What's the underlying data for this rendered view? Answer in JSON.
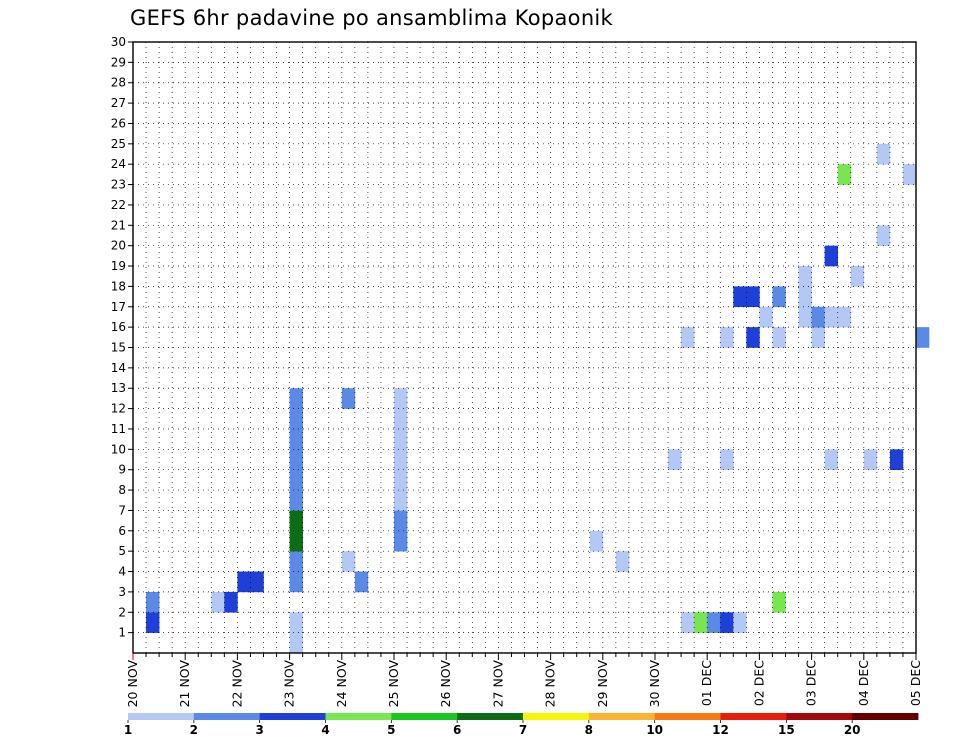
{
  "chart_data": {
    "type": "heatmap",
    "title": "GEFS 6hr padavine po ansamblima Kopaonik",
    "xlabel": "",
    "ylabel": "",
    "x_tick_labels": [
      "20 NOV",
      "21 NOV",
      "22 NOV",
      "23 NOV",
      "24 NOV",
      "25 NOV",
      "26 NOV",
      "27 NOV",
      "28 NOV",
      "29 NOV",
      "30 NOV",
      "01 DEC",
      "02 DEC",
      "03 DEC",
      "04 DEC",
      "05 DEC"
    ],
    "x_unit": "6-hour step from 20 NOV 00Z",
    "x_range": [
      0,
      60
    ],
    "y_range": [
      0,
      30
    ],
    "y_tick_labels": [
      "1",
      "2",
      "3",
      "4",
      "5",
      "6",
      "7",
      "8",
      "9",
      "10",
      "11",
      "12",
      "13",
      "14",
      "15",
      "16",
      "17",
      "18",
      "19",
      "20",
      "21",
      "22",
      "23",
      "24",
      "25",
      "26",
      "27",
      "28",
      "29",
      "30"
    ],
    "grid": true,
    "legend": {
      "placement": "bottom",
      "labels": [
        "1",
        "2",
        "3",
        "4",
        "5",
        "6",
        "7",
        "8",
        "10",
        "12",
        "15",
        "20"
      ],
      "colors": [
        "#b3c8f5",
        "#5a8ae6",
        "#1e3fd8",
        "#78e650",
        "#19c81e",
        "#0b6e14",
        "#f5f50a",
        "#fab432",
        "#fa7814",
        "#e61e0a",
        "#a00a0a",
        "#640000"
      ]
    },
    "cells": [
      [
        1,
        1,
        3
      ],
      [
        1,
        2,
        2
      ],
      [
        6,
        2,
        1
      ],
      [
        7,
        2,
        3
      ],
      [
        8,
        3,
        3
      ],
      [
        9,
        3,
        3
      ],
      [
        12,
        0,
        1
      ],
      [
        12,
        1,
        1
      ],
      [
        12,
        3,
        2
      ],
      [
        12,
        4,
        2
      ],
      [
        12,
        5,
        6
      ],
      [
        12,
        6,
        6
      ],
      [
        12,
        7,
        2
      ],
      [
        12,
        8,
        2
      ],
      [
        12,
        9,
        2
      ],
      [
        12,
        10,
        2
      ],
      [
        12,
        11,
        2
      ],
      [
        12,
        12,
        2
      ],
      [
        16,
        4,
        1
      ],
      [
        16,
        12,
        2
      ],
      [
        17,
        3,
        2
      ],
      [
        20,
        5,
        2
      ],
      [
        20,
        6,
        2
      ],
      [
        20,
        7,
        1
      ],
      [
        20,
        8,
        1
      ],
      [
        20,
        9,
        1
      ],
      [
        20,
        10,
        1
      ],
      [
        20,
        11,
        1
      ],
      [
        20,
        12,
        1
      ],
      [
        35,
        5,
        1
      ],
      [
        37,
        4,
        1
      ],
      [
        42,
        1,
        1
      ],
      [
        43,
        1,
        4
      ],
      [
        44,
        1,
        2
      ],
      [
        45,
        1,
        3
      ],
      [
        46,
        1,
        1
      ],
      [
        49,
        2,
        4
      ],
      [
        41,
        9,
        1
      ],
      [
        45,
        9,
        1
      ],
      [
        53,
        9,
        1
      ],
      [
        56,
        9,
        1
      ],
      [
        58,
        9,
        3
      ],
      [
        42,
        15,
        1
      ],
      [
        45,
        15,
        1
      ],
      [
        47,
        15,
        3
      ],
      [
        49,
        15,
        1
      ],
      [
        48,
        16,
        1
      ],
      [
        52,
        15,
        1
      ],
      [
        60,
        15,
        2
      ],
      [
        46,
        17,
        3
      ],
      [
        47,
        17,
        3
      ],
      [
        49,
        17,
        2
      ],
      [
        51,
        16,
        1
      ],
      [
        51,
        17,
        1
      ],
      [
        52,
        16,
        2
      ],
      [
        53,
        16,
        1
      ],
      [
        54,
        16,
        1
      ],
      [
        51,
        18,
        1
      ],
      [
        55,
        18,
        1
      ],
      [
        53,
        19,
        3
      ],
      [
        57,
        20,
        1
      ],
      [
        54,
        23,
        4
      ],
      [
        57,
        24,
        1
      ],
      [
        59,
        23,
        1
      ]
    ]
  }
}
